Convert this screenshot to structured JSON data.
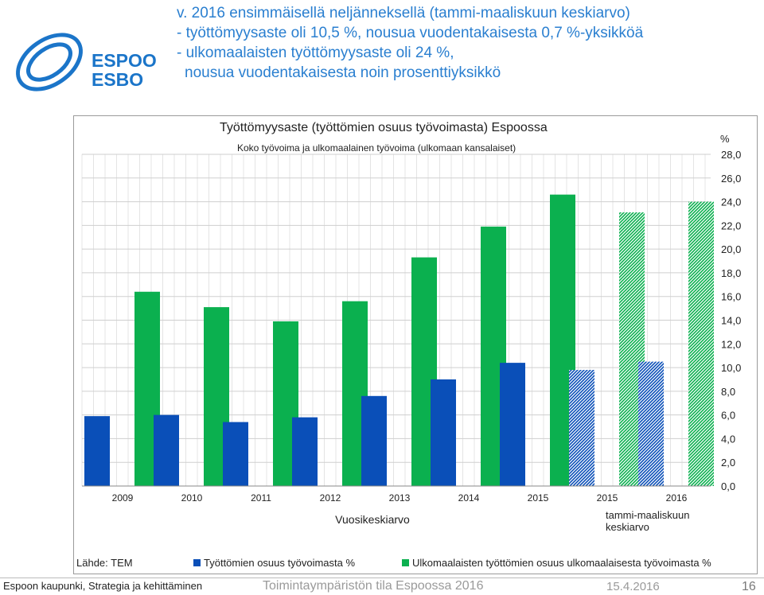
{
  "slide": {
    "headline": [
      "v. 2016 ensimmäisellä neljänneksellä (tammi-maaliskuun keskiarvo)",
      "- työttömyysaste oli 10,5 %,  nousua vuodentakaisesta  0,7 %-yksikköä",
      "- ulkomaalaisten työttömyysaste oli 24 %,",
      "nousua vuodentakaisesta  noin prosenttiyksikkö"
    ],
    "logo": {
      "line1": "ESPOO",
      "line2": "ESBO",
      "color": "#1b75c9"
    },
    "footer": {
      "left": "Espoon kaupunki, Strategia ja kehittäminen",
      "center": "Toimintaympäristön tila Espoossa 2016",
      "date": "15.4.2016",
      "page": "16"
    }
  },
  "chart_data": {
    "type": "bar",
    "title": "Työttömyysaste (työttömien osuus työvoimasta) Espoossa",
    "subtitle": "Koko työvoima ja ulkomaalainen työvoima (ulkomaan kansalaiset)",
    "categories": [
      "2009",
      "2010",
      "2011",
      "2012",
      "2013",
      "2014",
      "2015",
      "2015",
      "2016"
    ],
    "group_labels": [
      "Vuosikeskiarvo",
      "tammi-maaliskuun keskiarvo"
    ],
    "series": [
      {
        "name": "Työttömien osuus työvoimasta %",
        "color": "#0a4fb8",
        "values": [
          5.9,
          6.0,
          5.4,
          5.8,
          7.6,
          9.0,
          10.4,
          9.8,
          10.5
        ]
      },
      {
        "name": "Ulkomaalaisten työttömien osuus ulkomaalaisesta työvoimasta %",
        "color": "#0bb04f",
        "values": [
          16.4,
          15.1,
          13.9,
          15.6,
          19.3,
          21.9,
          24.6,
          23.1,
          24.0
        ]
      }
    ],
    "patterned_from_index": 7,
    "ylabel": "%",
    "ylim": [
      0,
      28
    ],
    "yticks": [
      "0,0",
      "2,0",
      "4,0",
      "6,0",
      "8,0",
      "10,0",
      "12,0",
      "14,0",
      "16,0",
      "18,0",
      "20,0",
      "22,0",
      "24,0",
      "26,0",
      "28,0"
    ],
    "source": "Lähde: TEM",
    "grid": true,
    "legend_position": "bottom"
  }
}
